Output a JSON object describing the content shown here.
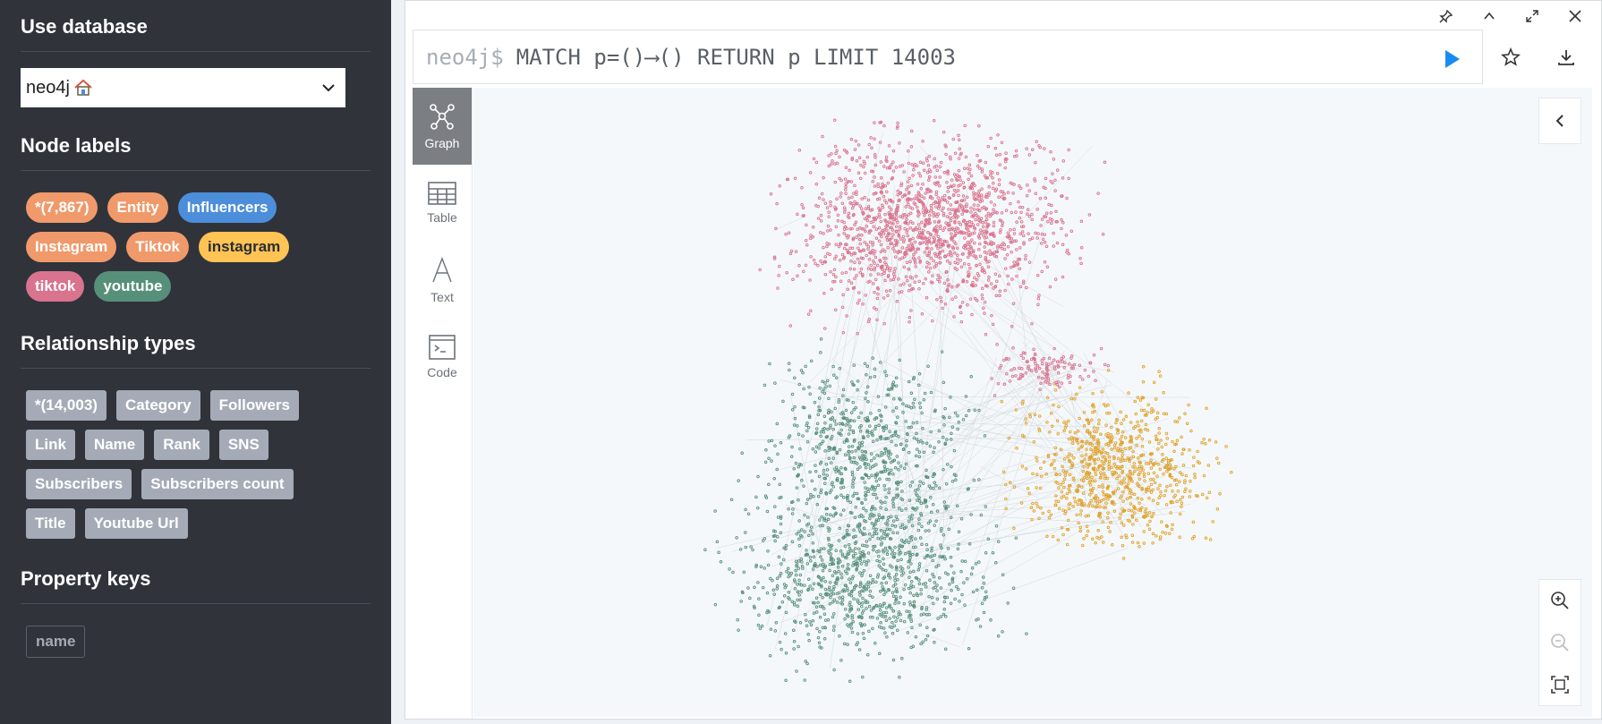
{
  "sidebar": {
    "use_database": {
      "title": "Use database",
      "selected": "neo4j",
      "icon": "house-icon"
    },
    "node_labels": {
      "title": "Node labels",
      "items": [
        {
          "label": "*(7,867)",
          "color": "#f0996b",
          "text_color": "#ffffff"
        },
        {
          "label": "Entity",
          "color": "#f0996b",
          "text_color": "#ffffff"
        },
        {
          "label": "Influencers",
          "color": "#4c8eda",
          "text_color": "#ffffff"
        },
        {
          "label": "Instagram",
          "color": "#f0996b",
          "text_color": "#ffffff"
        },
        {
          "label": "Tiktok",
          "color": "#f0996b",
          "text_color": "#ffffff"
        },
        {
          "label": "instagram",
          "color": "#ffc454",
          "text_color": "#2a2c34"
        },
        {
          "label": "tiktok",
          "color": "#d9738e",
          "text_color": "#ffffff"
        },
        {
          "label": "youtube",
          "color": "#57907a",
          "text_color": "#ffffff"
        }
      ]
    },
    "relationship_types": {
      "title": "Relationship types",
      "items": [
        "*(14,003)",
        "Category",
        "Followers",
        "Link",
        "Name",
        "Rank",
        "SNS",
        "Subscribers",
        "Subscribers count",
        "Title",
        "Youtube Url"
      ]
    },
    "property_keys": {
      "title": "Property keys",
      "items": [
        "name"
      ]
    }
  },
  "editor": {
    "prompt": "neo4j$",
    "query": "MATCH p=()⟶() RETURN p LIMIT 14003"
  },
  "view_tabs": [
    {
      "label": "Graph",
      "icon": "graph-icon",
      "active": true
    },
    {
      "label": "Table",
      "icon": "table-icon",
      "active": false
    },
    {
      "label": "Text",
      "icon": "text-icon",
      "active": false
    },
    {
      "label": "Code",
      "icon": "code-icon",
      "active": false
    }
  ],
  "graph": {
    "clusters": [
      {
        "name": "tiktok",
        "color": "#d9738e"
      },
      {
        "name": "youtube",
        "color": "#57907a"
      },
      {
        "name": "instagram",
        "color": "#e0a12a"
      }
    ]
  }
}
